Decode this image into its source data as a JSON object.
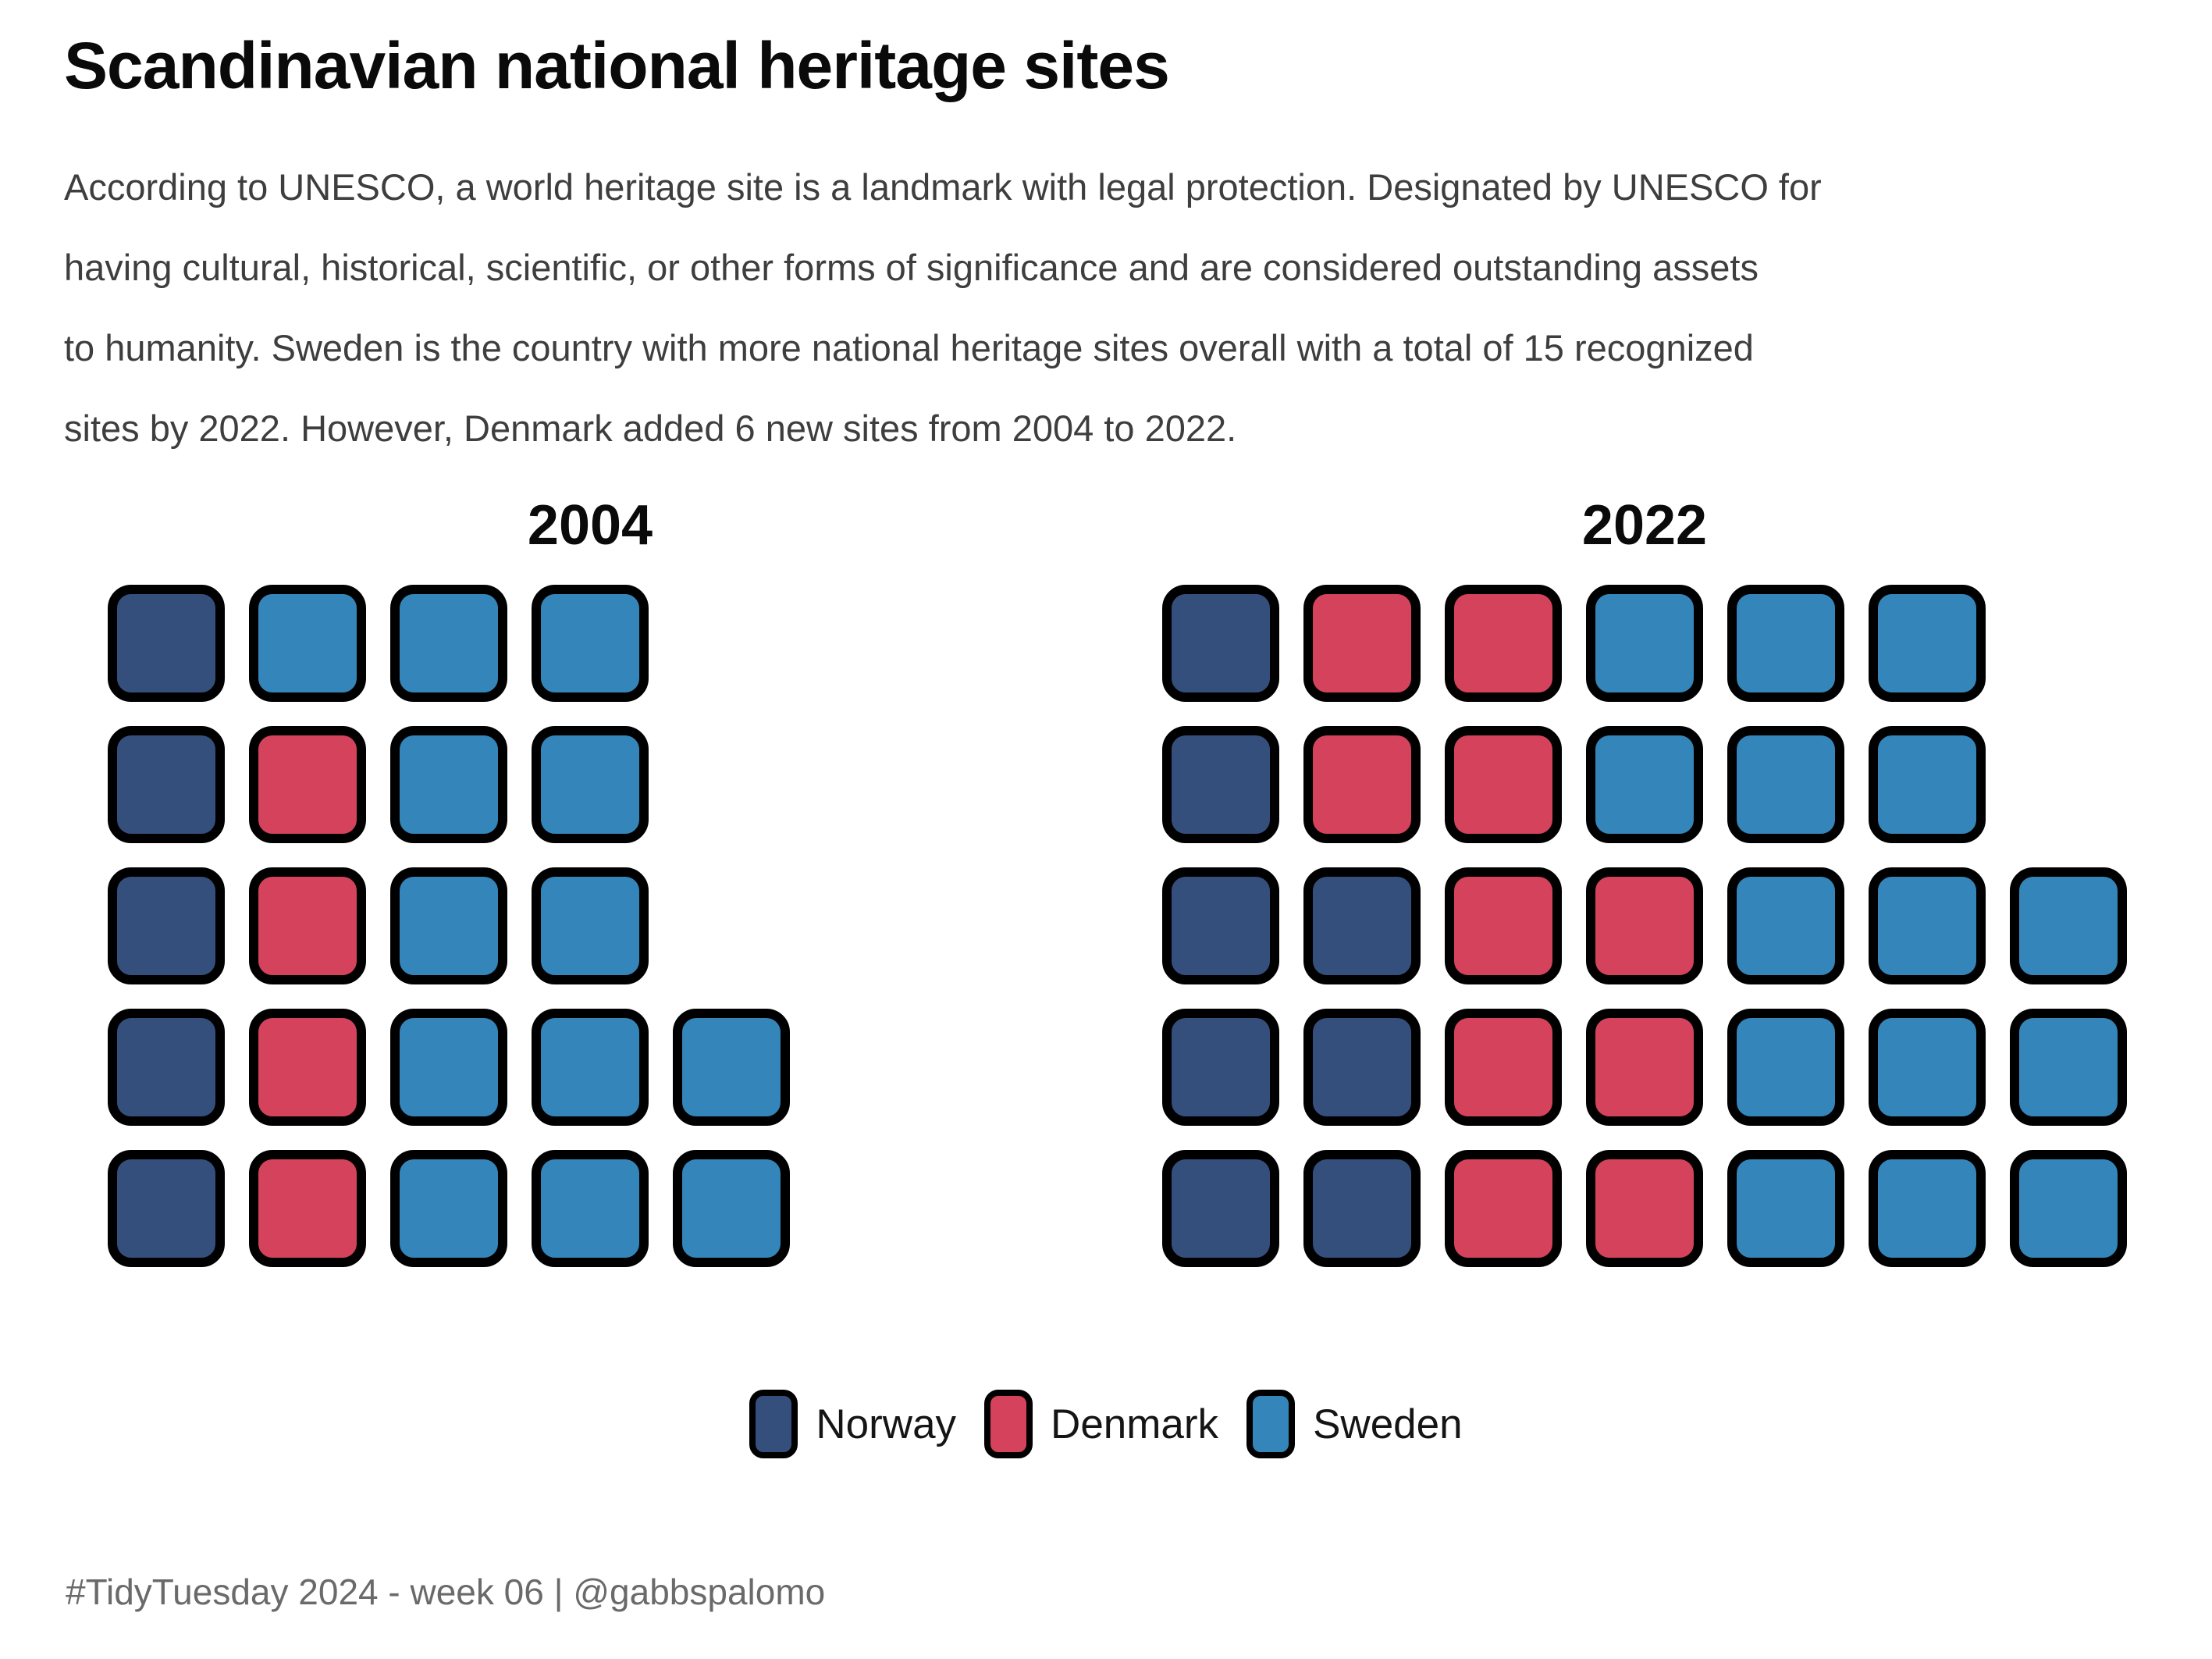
{
  "title": "Scandinavian national heritage sites",
  "subtitle_lines": [
    "According to UNESCO, a world heritage site is a landmark with legal protection. Designated by UNESCO for",
    "having cultural, historical, scientific, or other forms of significance and are considered outstanding assets",
    "to humanity. Sweden is the country with more national heritage sites overall with a total of 15 recognized",
    "sites by 2022. However, Denmark added 6 new sites from 2004 to 2022."
  ],
  "caption": "#TidyTuesday 2024 - week 06 | @gabbspalomo",
  "colors": {
    "norway": "#354F7C",
    "denmark": "#D4425B",
    "sweden": "#3485BA",
    "cell_border": "#000000",
    "title_text": "#0A0A0A",
    "subtitle_text": "#3E3E3E",
    "caption_text": "#6A6A6A",
    "background": "#FFFFFF"
  },
  "legend": {
    "items": [
      {
        "label": "Norway",
        "key": "norway"
      },
      {
        "label": "Denmark",
        "key": "denmark"
      },
      {
        "label": "Sweden",
        "key": "sweden"
      }
    ]
  },
  "chart_data": {
    "type": "waffle",
    "title": "Scandinavian national heritage sites",
    "unit": "1 square = 1 national heritage site",
    "rows": 5,
    "max_cols": 7,
    "fill_order": "column-wise from bottom-left",
    "legend_entries": [
      "Norway",
      "Denmark",
      "Sweden"
    ],
    "facets": [
      {
        "label": "2004",
        "totals": {
          "Norway": 5,
          "Denmark": 4,
          "Sweden": 13
        },
        "grid": [
          [
            "norway",
            "sweden",
            "sweden",
            "sweden"
          ],
          [
            "norway",
            "denmark",
            "sweden",
            "sweden"
          ],
          [
            "norway",
            "denmark",
            "sweden",
            "sweden"
          ],
          [
            "norway",
            "denmark",
            "sweden",
            "sweden",
            "sweden"
          ],
          [
            "norway",
            "denmark",
            "sweden",
            "sweden",
            "sweden"
          ]
        ]
      },
      {
        "label": "2022",
        "totals": {
          "Norway": 8,
          "Denmark": 10,
          "Sweden": 15
        },
        "grid": [
          [
            "norway",
            "denmark",
            "denmark",
            "sweden",
            "sweden",
            "sweden"
          ],
          [
            "norway",
            "denmark",
            "denmark",
            "sweden",
            "sweden",
            "sweden"
          ],
          [
            "norway",
            "norway",
            "denmark",
            "denmark",
            "sweden",
            "sweden",
            "sweden"
          ],
          [
            "norway",
            "norway",
            "denmark",
            "denmark",
            "sweden",
            "sweden",
            "sweden"
          ],
          [
            "norway",
            "norway",
            "denmark",
            "denmark",
            "sweden",
            "sweden",
            "sweden"
          ]
        ]
      }
    ]
  }
}
